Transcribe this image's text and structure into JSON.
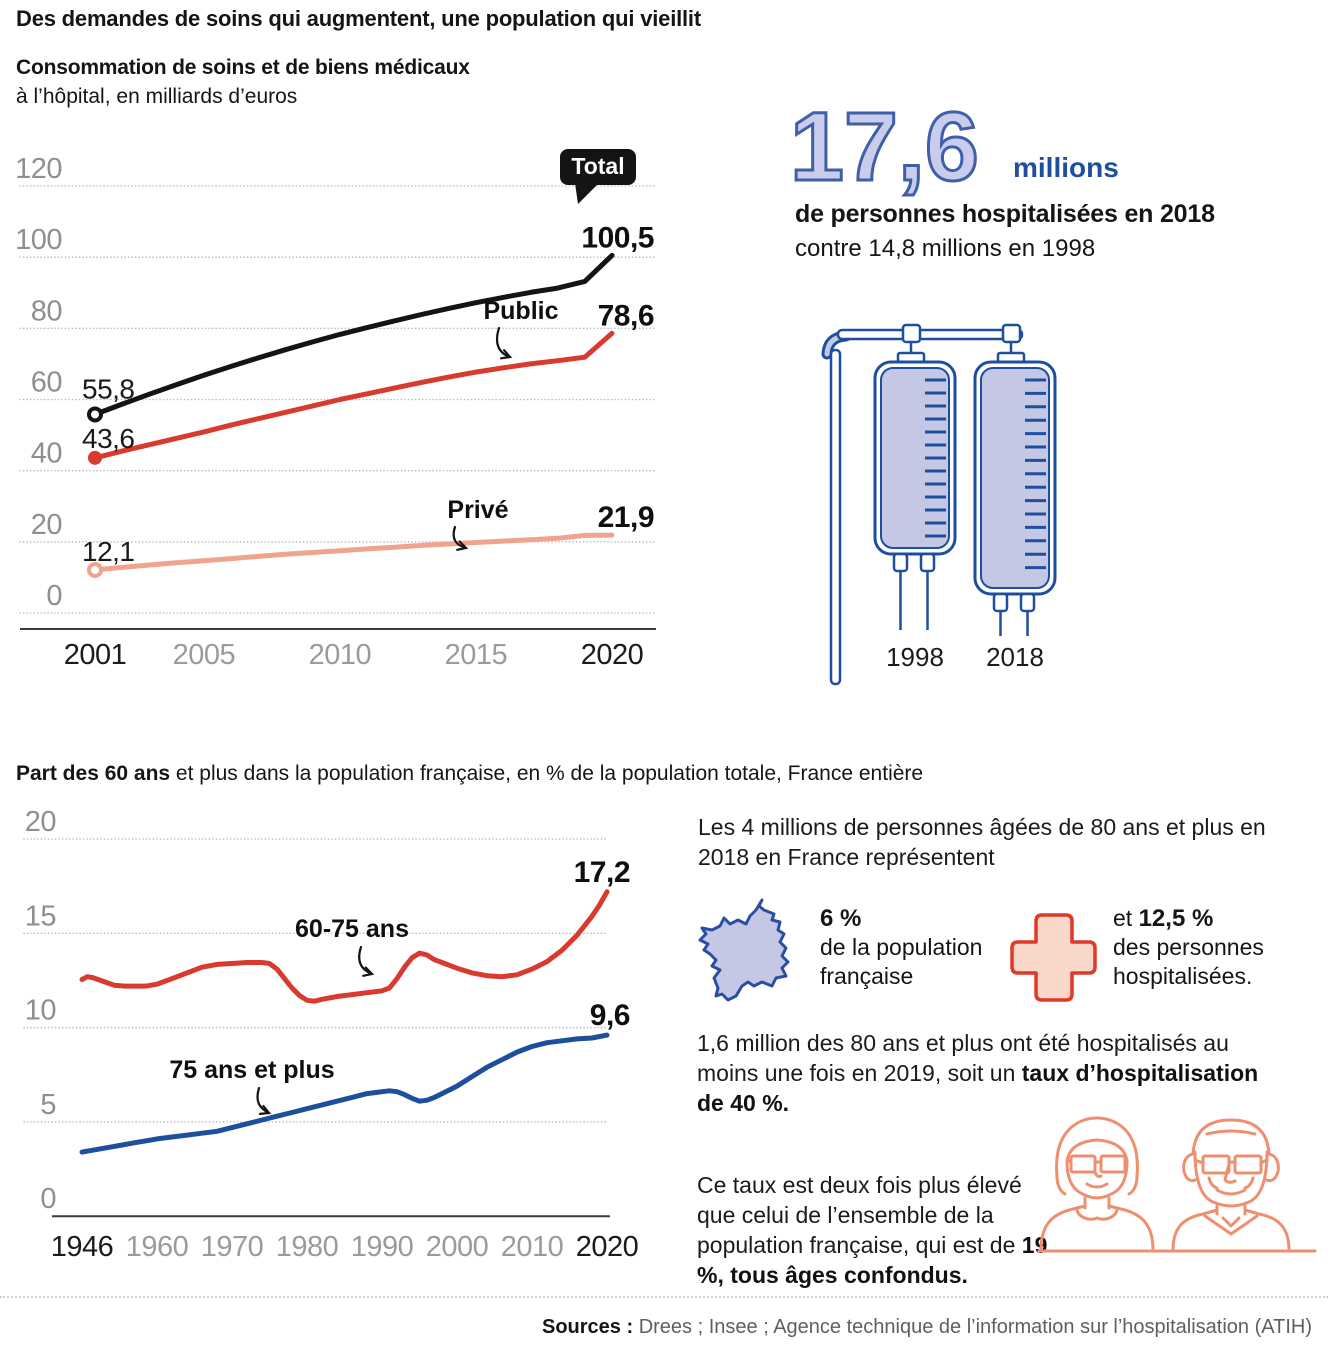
{
  "header": {
    "title": "Des demandes de soins qui augmentent, une population qui vieillit"
  },
  "stat_block": {
    "big_number": "17,6",
    "big_unit": "millions",
    "line1": "de personnes hospitalisées en 2018",
    "line2": "contre 14,8 millions en 1998",
    "bag_labels": [
      "1998",
      "2018"
    ]
  },
  "chart_data": [
    {
      "id": "consommation-hopital",
      "type": "line",
      "title_bold": "Consommation de soins et de biens médicaux",
      "subtitle": "à l’hôpital, en milliards d’euros",
      "ylim": [
        0,
        120
      ],
      "yticks": [
        0,
        20,
        40,
        60,
        80,
        100,
        120
      ],
      "xticks": [
        2001,
        2005,
        2010,
        2015,
        2020
      ],
      "grid": "dotted-horizontal",
      "legend_position": "inline-labels",
      "x": [
        2001,
        2002,
        2003,
        2004,
        2005,
        2006,
        2007,
        2008,
        2009,
        2010,
        2011,
        2012,
        2013,
        2014,
        2015,
        2016,
        2017,
        2018,
        2019,
        2020
      ],
      "series": [
        {
          "name": "Total",
          "color": "#141414",
          "marker": "open",
          "start_label": "55,8",
          "end_label": "100,5",
          "values": [
            55.8,
            58.7,
            61.5,
            64.2,
            66.8,
            69.3,
            71.7,
            74.0,
            76.2,
            78.3,
            80.2,
            82.1,
            83.9,
            85.6,
            87.2,
            88.7,
            90.1,
            91.3,
            93.2,
            100.5
          ]
        },
        {
          "name": "Public",
          "color": "#d93a2e",
          "marker": "filled",
          "start_label": "43,6",
          "end_label": "78,6",
          "values": [
            43.6,
            45.5,
            47.3,
            49.1,
            50.9,
            52.8,
            54.6,
            56.4,
            58.2,
            60.0,
            61.6,
            63.2,
            64.8,
            66.3,
            67.7,
            68.9,
            70.0,
            70.9,
            71.9,
            78.6
          ]
        },
        {
          "name": "Privé",
          "color": "#f1a48d",
          "marker": "open",
          "start_label": "12,1",
          "end_label": "21,9",
          "values": [
            12.1,
            12.8,
            13.5,
            14.1,
            14.7,
            15.3,
            15.9,
            16.5,
            17.0,
            17.5,
            18.0,
            18.5,
            19.0,
            19.4,
            19.8,
            20.2,
            20.6,
            21.0,
            21.8,
            21.9
          ]
        }
      ]
    },
    {
      "id": "part-60-ans",
      "type": "line",
      "title_bold": "Part des 60 ans",
      "title_rest": " et plus dans la population française, en % de la population totale, France entière",
      "ylim": [
        0,
        20
      ],
      "yticks": [
        0,
        5,
        10,
        15,
        20
      ],
      "xticks": [
        1946,
        1960,
        1970,
        1980,
        1990,
        2000,
        2010,
        2020
      ],
      "grid": "dotted-horizontal",
      "legend_position": "inline-labels",
      "series": [
        {
          "name": "60-75 ans",
          "color": "#d93a2e",
          "end_label": "17,2",
          "x": [
            1946,
            1947,
            1948,
            1950,
            1952,
            1954,
            1956,
            1958,
            1960,
            1962,
            1964,
            1966,
            1968,
            1970,
            1972,
            1974,
            1975,
            1976,
            1977,
            1978,
            1979,
            1980,
            1981,
            1982,
            1984,
            1986,
            1988,
            1990,
            1991,
            1992,
            1993,
            1994,
            1995,
            1996,
            1997,
            1998,
            2000,
            2002,
            2004,
            2006,
            2008,
            2010,
            2012,
            2014,
            2016,
            2018,
            2019,
            2020
          ],
          "values": [
            12.55,
            12.7,
            12.65,
            12.45,
            12.25,
            12.2,
            12.2,
            12.2,
            12.3,
            12.6,
            12.9,
            13.2,
            13.35,
            13.4,
            13.45,
            13.45,
            13.4,
            13.1,
            12.6,
            12.1,
            11.7,
            11.45,
            11.4,
            11.5,
            11.65,
            11.75,
            11.85,
            11.95,
            12.1,
            12.6,
            13.2,
            13.7,
            13.95,
            13.85,
            13.6,
            13.45,
            13.15,
            12.9,
            12.75,
            12.7,
            12.8,
            13.1,
            13.5,
            14.1,
            14.9,
            15.9,
            16.5,
            17.2
          ]
        },
        {
          "name": "75 ans et plus",
          "color": "#1e4f9e",
          "end_label": "9,6",
          "x": [
            1946,
            1948,
            1950,
            1952,
            1954,
            1956,
            1958,
            1960,
            1962,
            1964,
            1966,
            1968,
            1970,
            1972,
            1974,
            1976,
            1978,
            1980,
            1982,
            1984,
            1986,
            1988,
            1990,
            1991,
            1992,
            1993,
            1994,
            1995,
            1996,
            1997,
            1998,
            2000,
            2002,
            2004,
            2006,
            2008,
            2010,
            2012,
            2014,
            2016,
            2018,
            2020
          ],
          "values": [
            3.4,
            3.5,
            3.6,
            3.7,
            3.8,
            3.9,
            4.0,
            4.1,
            4.2,
            4.3,
            4.4,
            4.5,
            4.7,
            4.9,
            5.1,
            5.3,
            5.5,
            5.7,
            5.9,
            6.1,
            6.3,
            6.5,
            6.6,
            6.65,
            6.6,
            6.45,
            6.25,
            6.1,
            6.15,
            6.3,
            6.5,
            6.9,
            7.4,
            7.9,
            8.3,
            8.7,
            9.0,
            9.2,
            9.3,
            9.4,
            9.45,
            9.6
          ]
        }
      ]
    }
  ],
  "aside": {
    "p1": "Les 4 millions de personnes âgées de 80 ans et plus en 2018 en France représentent",
    "stat_france": {
      "value": "6 %",
      "label": "de la population française"
    },
    "stat_hosp": {
      "prefix": "et ",
      "value": "12,5 %",
      "label": "des personnes hospitalisées."
    },
    "p2": {
      "regular": "1,6 million des 80 ans et plus ont été hospitalisés au moins une fois en 2019, soit un ",
      "bold": "taux d’hospitalisation de 40 %."
    },
    "p3": {
      "regular": "Ce taux est deux fois plus élevé que celui de l’ensemble de la population française, qui est de ",
      "bold": "19 %, tous âges confondus."
    }
  },
  "footer": {
    "sources_label": "Sources :",
    "sources_text": " Drees ; Insee ; Agence technique de l’information sur l’hospitalisation (ATIH)"
  },
  "colors": {
    "accent_red": "#d93a2e",
    "accent_salmon": "#f1a48d",
    "accent_blue": "#1e4f9e",
    "periwinkle_fill": "#c5c8e4",
    "big_number_fill": "#c9cdeb",
    "big_number_stroke": "#3f5fa8",
    "cross_fill": "#f9d8ca",
    "cross_stroke": "#e0392a",
    "coral": "#ee8f6f"
  }
}
